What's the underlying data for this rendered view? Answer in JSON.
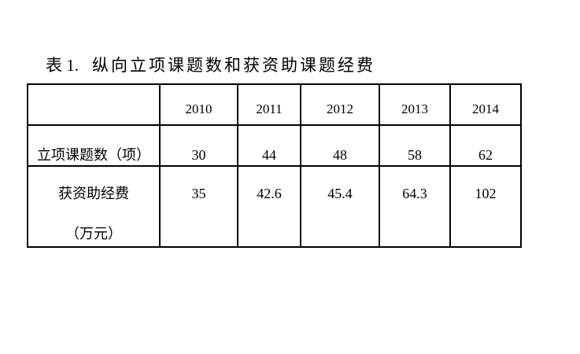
{
  "page": {
    "background": "#ffffff",
    "text_color": "#000000",
    "border_color": "#000000"
  },
  "title": {
    "label": "表 1.",
    "text": "纵向立项课题数和获资助课题经费"
  },
  "table": {
    "corner": "",
    "years": [
      "2010",
      "2011",
      "2012",
      "2013",
      "2014"
    ],
    "rows": [
      {
        "label": "立项课题数（项）",
        "values": [
          "30",
          "44",
          "48",
          "58",
          "62"
        ]
      },
      {
        "label_line1": "获资助经费",
        "label_line2": "（万元）",
        "values": [
          "35",
          "42.6",
          "45.4",
          "64.3",
          "102"
        ]
      }
    ]
  }
}
